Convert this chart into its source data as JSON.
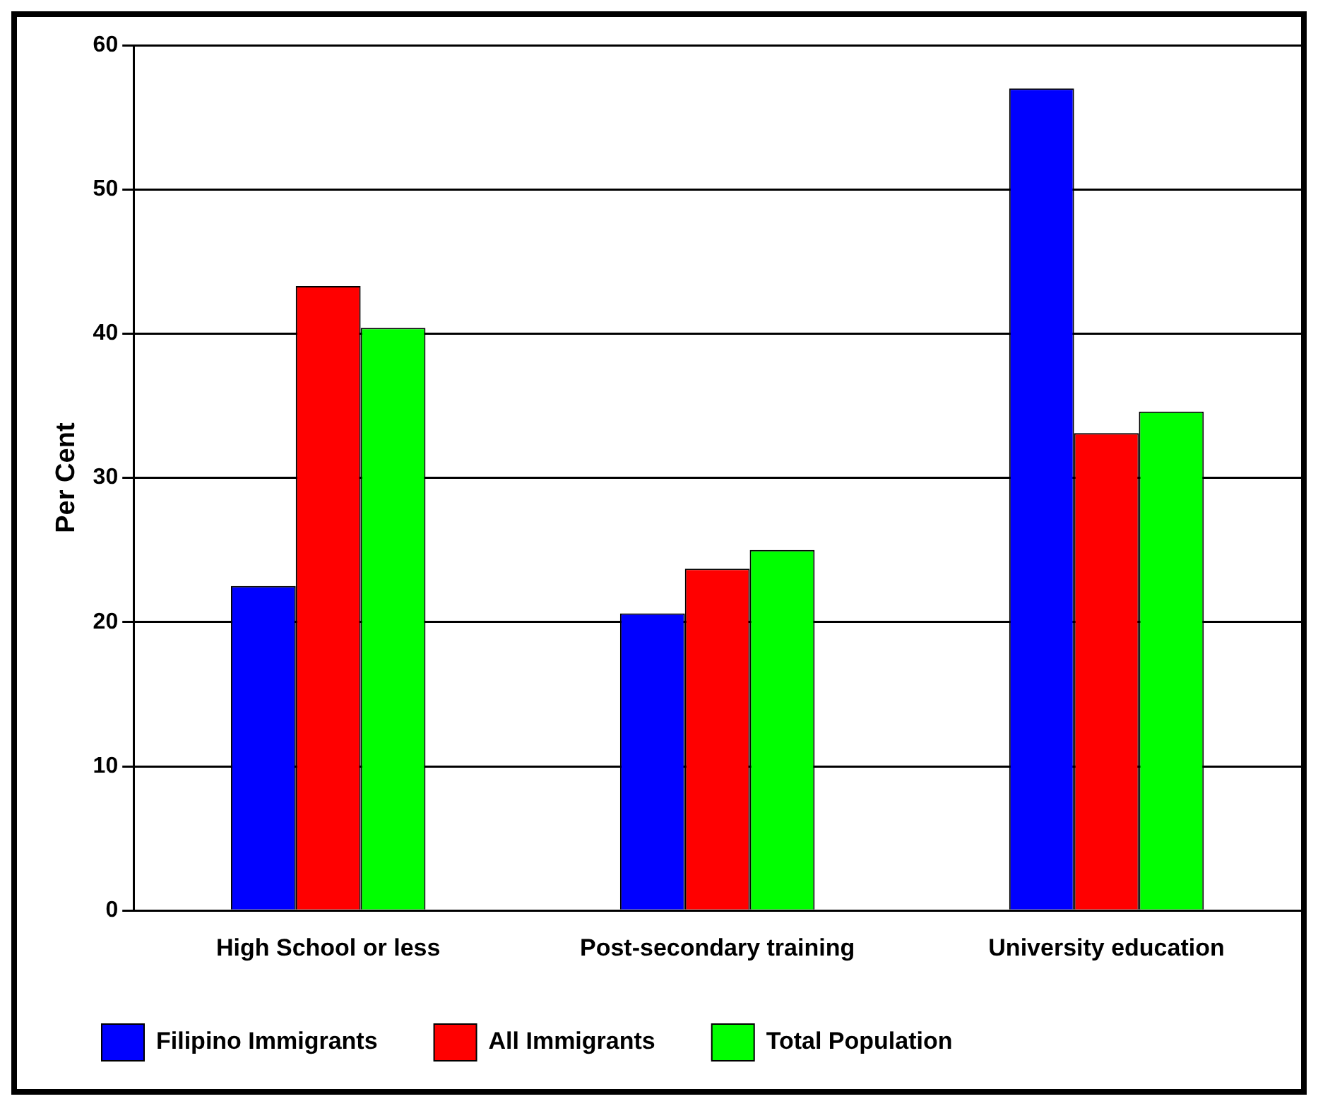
{
  "chart_data": {
    "type": "bar",
    "ylabel": "Per Cent",
    "categories": [
      "High School or less",
      "Post-secondary training",
      "University education"
    ],
    "series": [
      {
        "name": "Filipino Immigrants",
        "color": "#0000ff",
        "values": [
          22.5,
          20.6,
          57.0
        ]
      },
      {
        "name": "All Immigrants",
        "color": "#ff0000",
        "values": [
          43.3,
          23.7,
          33.1
        ]
      },
      {
        "name": "Total Population",
        "color": "#00ff00",
        "values": [
          40.4,
          25.0,
          34.6
        ]
      }
    ],
    "ylim": [
      0,
      60
    ],
    "yticks": [
      0,
      10,
      20,
      30,
      40,
      50,
      60
    ],
    "grid": "y",
    "legend": "bottom left"
  }
}
